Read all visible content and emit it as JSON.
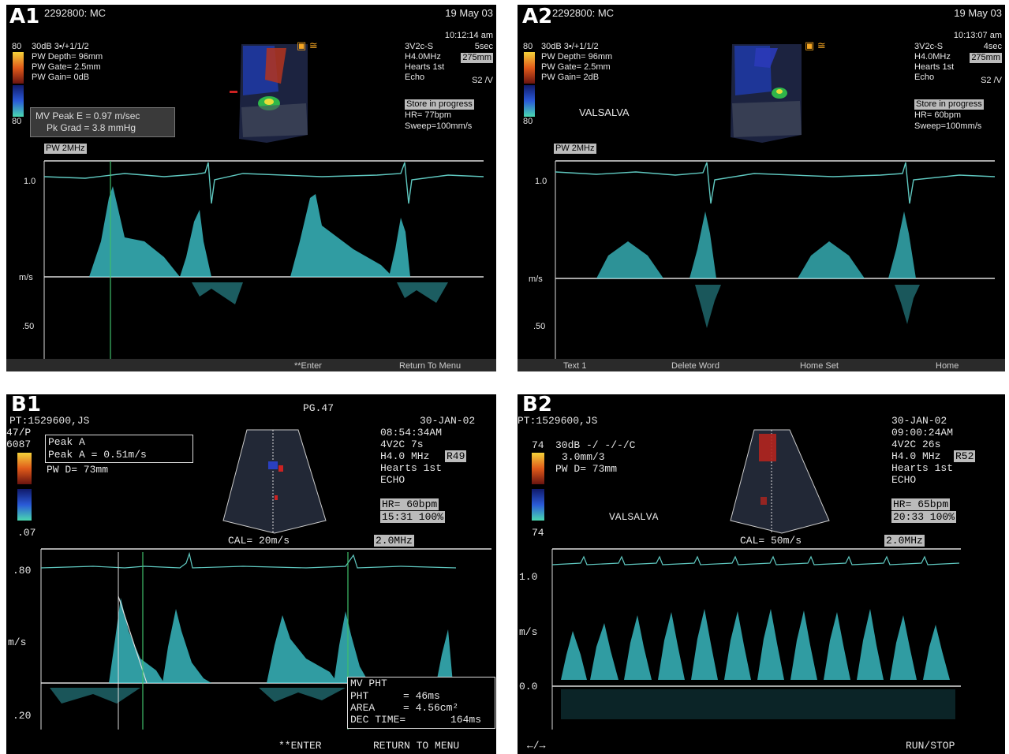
{
  "panels": {
    "a1": {
      "label": "A1",
      "patient": "2292800: MC",
      "date": "19 May 03",
      "time": "10:12:14 am",
      "params": [
        "30dB  3•/+1/1/2",
        "PW Depth= 96mm",
        "PW Gate= 2.5mm",
        "PW Gain=   0dB"
      ],
      "probe": [
        "3V2c-S",
        "H4.0MHz",
        "Hearts 1st",
        "Echo"
      ],
      "probe_right": [
        "5sec",
        "275mm",
        "",
        "S2 /V"
      ],
      "status": [
        "Store in progress",
        "HR= 77bpm",
        "Sweep=100mm/s"
      ],
      "meas": [
        "MV Peak E = 0.97 m/sec",
        "Pk Grad = 3.8 mmHg"
      ],
      "pw": "PW 2MHz",
      "scale_top": "80",
      "scale_bot": "80",
      "y_top": "1.0",
      "y_mid": "m/s",
      "y_bot": ".50",
      "menu": [
        "**Enter",
        "Return To Menu"
      ]
    },
    "a2": {
      "label": "A2",
      "patient": "2292800: MC",
      "date": "19 May 03",
      "time": "10:13:07 am",
      "params": [
        "30dB  3•/+1/1/2",
        "PW Depth= 96mm",
        "PW Gate= 2.5mm",
        "PW Gain=   2dB"
      ],
      "probe": [
        "3V2c-S",
        "H4.0MHz",
        "Hearts 1st",
        "Echo"
      ],
      "probe_right": [
        "4sec",
        "275mm",
        "",
        "S2 /V"
      ],
      "status": [
        "Store in progress",
        "HR= 60bpm",
        "Sweep=100mm/s"
      ],
      "note": "VALSALVA",
      "pw": "PW 2MHz",
      "scale_top": "80",
      "scale_bot": "80",
      "y_top": "1.0",
      "y_mid": "m/s",
      "y_bot": ".50",
      "menu": [
        "Text 1",
        "Delete Word",
        "Home Set",
        "Home"
      ]
    },
    "b1": {
      "label": "B1",
      "patient": "PT:1529600,JS",
      "page": "PG.47",
      "side": [
        "47/P",
        "6087"
      ],
      "date": "30-JAN-02",
      "time": "08:54:34AM",
      "probe": [
        "4V2C        7s",
        "H4.0 MHz",
        "Hearts 1st",
        "ECHO"
      ],
      "probe_box": "R49",
      "hr": "HR= 60bpm",
      "hr2": "15:31 100%",
      "peak_title": "Peak A",
      "peak_val": "Peak A   =   0.51m/s",
      "pwd": "PW D= 73mm",
      "cal": "CAL= 20m/s",
      "freq": "2.0MHz",
      "scale_bot": ".07",
      "y_top": ".80",
      "y_mid": "m/s",
      "y_bot": ".20",
      "results": [
        {
          "k": "MV PHT",
          "v": ""
        },
        {
          "k": "PHT",
          "v": "=       46ms"
        },
        {
          "k": "AREA",
          "v": "=    4.56cm²"
        },
        {
          "k": "DEC TIME=",
          "v": "164ms"
        }
      ],
      "menu": [
        "**ENTER",
        "RETURN TO MENU"
      ]
    },
    "b2": {
      "label": "B2",
      "patient": "PT:1529600,JS",
      "date": "30-JAN-02",
      "time": "09:00:24AM",
      "probe": [
        "4V2C       26s",
        "H4.0 MHz",
        "Hearts 1st",
        "ECHO"
      ],
      "probe_box": "R52",
      "hr": "HR= 65bpm",
      "hr2": "20:33 100%",
      "params": [
        "30dB -/ -/-/C",
        "3.0mm/3",
        "PW D= 73mm"
      ],
      "note": "VALSALVA",
      "cal": "CAL= 50m/s",
      "freq": "2.0MHz",
      "scale_top": "74",
      "scale_bot": "74",
      "y_top": "1.0",
      "y_mid": "m/s",
      "y_bot": "0.0",
      "menu": [
        "←/→",
        "RUN/STOP"
      ]
    }
  },
  "colors": {
    "trace": "#40d0d8",
    "ecg": "#5fc8c0",
    "baseline": "#dddddd",
    "marker": "#3fbf6a"
  }
}
